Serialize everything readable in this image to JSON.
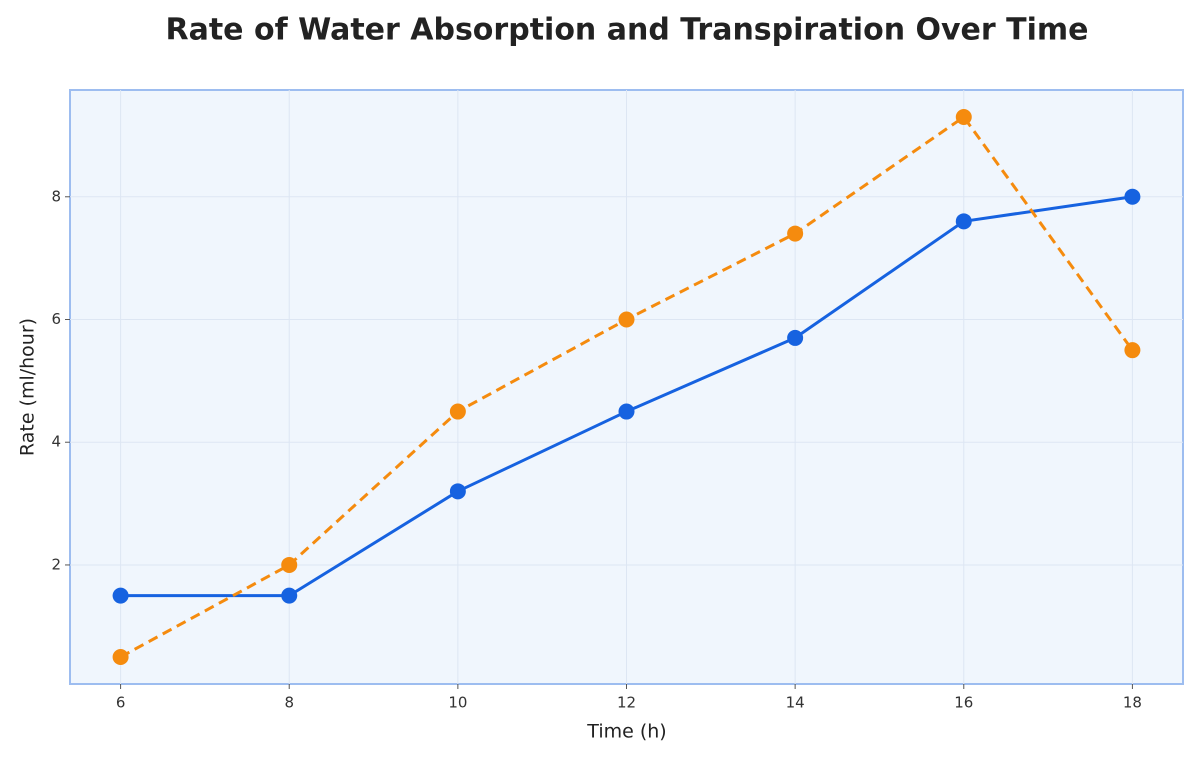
{
  "chart_data": {
    "type": "line",
    "title": "Rate of Water Absorption and Transpiration Over Time",
    "x_label": "Time (h)",
    "y_label": "Rate (ml/hour)",
    "x": [
      6,
      8,
      10,
      12,
      14,
      16,
      18
    ],
    "series": [
      {
        "color": "#1662e0",
        "line_style": "solid",
        "values": [
          1.5,
          1.5,
          3.2,
          4.5,
          5.7,
          7.6,
          8.0
        ]
      },
      {
        "color": "#f58b0e",
        "line_style": "dashed",
        "values": [
          0.5,
          2.0,
          4.5,
          6.0,
          7.4,
          9.3,
          5.5
        ]
      }
    ],
    "xlim": [
      5.4,
      18.6
    ],
    "xticks": [
      6,
      8,
      10,
      12,
      14,
      16,
      18
    ],
    "ylim": [
      0.06,
      9.74
    ],
    "yticks": [
      2,
      4,
      6,
      8
    ],
    "grid": true
  }
}
